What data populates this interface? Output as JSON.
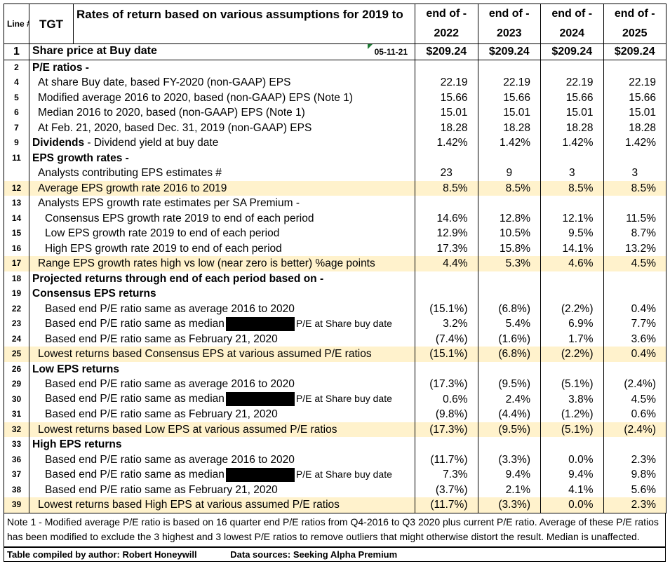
{
  "header": {
    "line_label": "Line #",
    "ticker": "TGT",
    "title": "Rates of return based on various assumptions for 2019 to",
    "col_prefix": "end of -",
    "years": [
      "2022",
      "2023",
      "2024",
      "2025"
    ]
  },
  "share_price": {
    "num": "1",
    "label": "Share price at Buy date",
    "date": "05-11-21",
    "values": [
      "$209.24",
      "$209.24",
      "$209.24",
      "$209.24"
    ]
  },
  "rows": [
    {
      "num": "2",
      "label": "P/E ratios -",
      "style": "bold",
      "values": [
        "",
        "",
        "",
        ""
      ]
    },
    {
      "num": "4",
      "label": "At share Buy date, based FY-2020  (non-GAAP) EPS",
      "style": "ind1",
      "values": [
        "22.19",
        "22.19",
        "22.19",
        "22.19"
      ]
    },
    {
      "num": "5",
      "label": "Modified average 2016 to 2020, based (non-GAAP) EPS  (Note 1)",
      "style": "ind1",
      "values": [
        "15.66",
        "15.66",
        "15.66",
        "15.66"
      ]
    },
    {
      "num": "6",
      "label": "Median 2016 to 2020, based (non-GAAP) EPS  (Note 1)",
      "style": "ind1",
      "values": [
        "15.01",
        "15.01",
        "15.01",
        "15.01"
      ]
    },
    {
      "num": "7",
      "label": "At Feb. 21, 2020, based Dec. 31, 2019 (non-GAAP) EPS",
      "style": "ind1",
      "values": [
        "18.28",
        "18.28",
        "18.28",
        "18.28"
      ]
    },
    {
      "num": "9",
      "label_bold": "Dividends",
      "label": " -  Dividend yield at buy date",
      "style": "mixed",
      "values": [
        "1.42%",
        "1.42%",
        "1.42%",
        "1.42%"
      ]
    },
    {
      "num": "11",
      "label": "EPS growth rates -",
      "style": "bold",
      "values": [
        "",
        "",
        "",
        ""
      ]
    },
    {
      "num": "",
      "label": "Analysts contributing EPS estimates #",
      "style": "ind1",
      "center": true,
      "values": [
        "23",
        "9",
        "3",
        "3"
      ]
    },
    {
      "num": "12",
      "label": "Average EPS growth rate 2016 to 2019",
      "style": "ind1",
      "hl": true,
      "values": [
        "8.5%",
        "8.5%",
        "8.5%",
        "8.5%"
      ]
    },
    {
      "num": "13",
      "label": "Analysts EPS growth rate estimates per SA Premium -",
      "style": "ind1",
      "values": [
        "",
        "",
        "",
        ""
      ]
    },
    {
      "num": "14",
      "label": "Consensus EPS growth rate 2019 to end of each period",
      "style": "ind2",
      "values": [
        "14.6%",
        "12.8%",
        "12.1%",
        "11.5%"
      ]
    },
    {
      "num": "15",
      "label": "Low EPS growth rate 2019 to end of each period",
      "style": "ind2",
      "values": [
        "12.9%",
        "10.5%",
        "9.5%",
        "8.7%"
      ]
    },
    {
      "num": "16",
      "label": "High EPS growth rate 2019 to end of each period",
      "style": "ind2",
      "values": [
        "17.3%",
        "15.8%",
        "14.1%",
        "13.2%"
      ]
    },
    {
      "num": "17",
      "label": "Range EPS growth rates high vs low (near zero is better) %age points",
      "style": "ind1",
      "hl": true,
      "values": [
        "4.4%",
        "5.3%",
        "4.6%",
        "4.5%"
      ]
    },
    {
      "num": "18",
      "label": "Projected returns through end of each period based on -",
      "style": "bold",
      "values": [
        "",
        "",
        "",
        ""
      ]
    },
    {
      "num": "19",
      "label": "Consensus EPS returns",
      "style": "bold",
      "values": [
        "",
        "",
        "",
        ""
      ]
    },
    {
      "num": "22",
      "label": "Based end P/E ratio same as average 2016 to 2020",
      "style": "ind2",
      "values": [
        "(15.1%)",
        "(6.8%)",
        "(2.2%)",
        "0.4%"
      ]
    },
    {
      "num": "23",
      "label": "Based end P/E ratio same as median",
      "suffix": "P/E at Share buy date",
      "style": "ind2",
      "redact": true,
      "values": [
        "3.2%",
        "5.4%",
        "6.9%",
        "7.7%"
      ]
    },
    {
      "num": "24",
      "label": "Based end P/E ratio same as February 21, 2020",
      "style": "ind2",
      "values": [
        "(7.4%)",
        "(1.6%)",
        "1.7%",
        "3.6%"
      ]
    },
    {
      "num": "25",
      "label": "Lowest returns based Consensus EPS at various assumed P/E ratios",
      "style": "ind1",
      "hl": true,
      "values": [
        "(15.1%)",
        "(6.8%)",
        "(2.2%)",
        "0.4%"
      ]
    },
    {
      "num": "26",
      "label": "Low EPS returns",
      "style": "bold",
      "values": [
        "",
        "",
        "",
        ""
      ]
    },
    {
      "num": "29",
      "label": "Based end P/E ratio same as average 2016 to 2020",
      "style": "ind2",
      "values": [
        "(17.3%)",
        "(9.5%)",
        "(5.1%)",
        "(2.4%)"
      ]
    },
    {
      "num": "30",
      "label": "Based end P/E ratio same as median",
      "suffix": "P/E at Share buy date",
      "style": "ind2",
      "redact": true,
      "values": [
        "0.6%",
        "2.4%",
        "3.8%",
        "4.5%"
      ]
    },
    {
      "num": "31",
      "label": "Based end P/E ratio same as February 21, 2020",
      "style": "ind2",
      "values": [
        "(9.8%)",
        "(4.4%)",
        "(1.2%)",
        "0.6%"
      ]
    },
    {
      "num": "32",
      "label": "Lowest returns based Low EPS at various assumed P/E ratios",
      "style": "ind1",
      "hl": true,
      "values": [
        "(17.3%)",
        "(9.5%)",
        "(5.1%)",
        "(2.4%)"
      ]
    },
    {
      "num": "33",
      "label": "High  EPS returns",
      "style": "bold",
      "values": [
        "",
        "",
        "",
        ""
      ]
    },
    {
      "num": "36",
      "label": "Based end P/E ratio same as average 2016 to 2020",
      "style": "ind2",
      "values": [
        "(11.7%)",
        "(3.3%)",
        "0.0%",
        "2.3%"
      ]
    },
    {
      "num": "37",
      "label": "Based end P/E ratio same as median",
      "suffix": "P/E at Share buy date",
      "style": "ind2",
      "redact": true,
      "values": [
        "7.3%",
        "9.4%",
        "9.4%",
        "9.8%"
      ]
    },
    {
      "num": "38",
      "label": "Based end P/E ratio same as February 21, 2020",
      "style": "ind2",
      "values": [
        "(3.7%)",
        "2.1%",
        "4.1%",
        "5.6%"
      ]
    },
    {
      "num": "39",
      "label": "Lowest returns based High EPS at various assumed P/E ratios",
      "style": "ind1",
      "hl": true,
      "values": [
        "(11.7%)",
        "(3.3%)",
        "0.0%",
        "2.3%"
      ]
    }
  ],
  "note": "Note 1 - Modified average P/E ratio is based on 16 quarter end  P/E ratios from Q4-2016 to Q3 2020 plus current P/E ratio. Average of these P/E ratios has been modified to exclude the 3 highest and 3 lowest P/E ratios to remove outliers that might otherwise distort the result. Median is unaffected.",
  "footer": {
    "compiled": "Table compiled by author: Robert Honeywill",
    "sources": "Data sources: Seeking Alpha Premium"
  },
  "colors": {
    "highlight": "#fff2cc",
    "border": "#000000",
    "triangle": "#1e7b34"
  }
}
